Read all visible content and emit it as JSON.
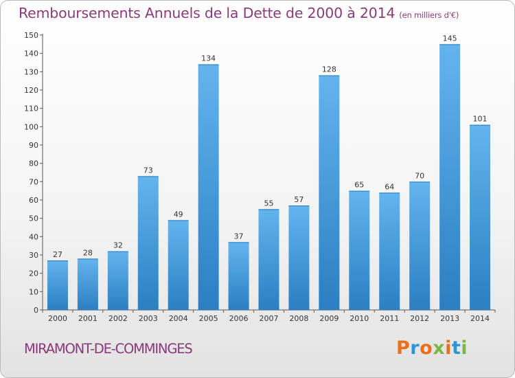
{
  "header": {
    "title": "Remboursements Annuels de la Dette de 2000 à 2014",
    "unit": "(en milliers d'€)"
  },
  "footer": {
    "commune": "MIRAMONT-DE-COMMINGES",
    "logo": "Proxiti",
    "logo_colors": [
      "#e8701a",
      "#2f95d6",
      "#e8701a",
      "#7ab648",
      "#e8701a",
      "#2f95d6",
      "#7ab648"
    ]
  },
  "chart_data": {
    "type": "bar",
    "title": "Remboursements Annuels de la Dette de 2000 à 2014",
    "subtitle": "(en milliers d'€)",
    "xlabel": "",
    "ylabel": "",
    "categories": [
      "2000",
      "2001",
      "2002",
      "2003",
      "2004",
      "2005",
      "2006",
      "2007",
      "2008",
      "2009",
      "2010",
      "2011",
      "2012",
      "2013",
      "2014"
    ],
    "values": [
      27,
      28,
      32,
      73,
      49,
      134,
      37,
      55,
      57,
      128,
      65,
      64,
      70,
      145,
      101
    ],
    "ylim": [
      0,
      150
    ],
    "yticks": [
      0,
      10,
      20,
      30,
      40,
      50,
      60,
      70,
      80,
      90,
      100,
      110,
      120,
      130,
      140,
      150
    ],
    "grid": false,
    "bar_color": "#3c9ce0",
    "bar_color_light": "#63b4ee",
    "bar_color_dark": "#2b7fc2"
  }
}
